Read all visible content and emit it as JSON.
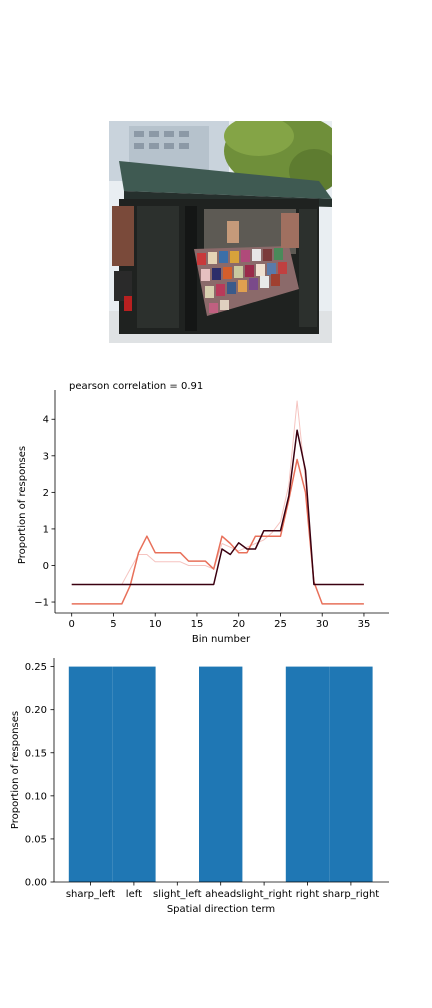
{
  "chart_data": [
    {
      "type": "line",
      "title": "pearson correlation = 0.91",
      "xlabel": "Bin number",
      "ylabel": "Proportion of responses",
      "xlim": [
        -2,
        38
      ],
      "ylim": [
        -1.3,
        4.8
      ],
      "xticks": [
        0,
        5,
        10,
        15,
        20,
        25,
        30,
        35
      ],
      "yticks": [
        -1,
        0,
        1,
        2,
        3,
        4
      ],
      "grid": false,
      "series": [
        {
          "color": "#e8705a",
          "x": [
            0,
            1,
            2,
            3,
            4,
            5,
            6,
            7,
            8,
            9,
            10,
            11,
            12,
            13,
            14,
            15,
            16,
            17,
            18,
            19,
            20,
            21,
            22,
            23,
            24,
            25,
            26,
            27,
            28,
            29,
            30,
            31,
            32,
            33,
            34,
            35
          ],
          "y": [
            -1.05,
            -1.05,
            -1.05,
            -1.05,
            -1.05,
            -1.05,
            -1.05,
            -0.55,
            0.35,
            0.8,
            0.35,
            0.35,
            0.35,
            0.35,
            0.12,
            0.12,
            0.12,
            -0.1,
            0.8,
            0.6,
            0.35,
            0.35,
            0.8,
            0.8,
            0.8,
            0.8,
            1.8,
            2.9,
            2.0,
            -0.45,
            -1.05,
            -1.05,
            -1.05,
            -1.05,
            -1.05,
            -1.05
          ]
        },
        {
          "color": "#3a0010",
          "x": [
            0,
            1,
            2,
            3,
            4,
            5,
            6,
            7,
            8,
            9,
            10,
            11,
            12,
            13,
            14,
            15,
            16,
            17,
            18,
            19,
            20,
            21,
            22,
            23,
            24,
            25,
            26,
            27,
            28,
            29,
            30,
            31,
            32,
            33,
            34,
            35
          ],
          "y": [
            -0.52,
            -0.52,
            -0.52,
            -0.52,
            -0.52,
            -0.52,
            -0.52,
            -0.52,
            -0.52,
            -0.52,
            -0.52,
            -0.52,
            -0.52,
            -0.52,
            -0.52,
            -0.52,
            -0.52,
            -0.52,
            0.45,
            0.3,
            0.62,
            0.45,
            0.45,
            0.95,
            0.95,
            0.95,
            1.9,
            3.7,
            2.6,
            -0.52,
            -0.52,
            -0.52,
            -0.52,
            -0.52,
            -0.52,
            -0.52
          ]
        },
        {
          "color": "#f5c4c0",
          "x": [
            0,
            1,
            2,
            3,
            4,
            5,
            6,
            7,
            8,
            9,
            10,
            11,
            12,
            13,
            14,
            15,
            16,
            17,
            18,
            19,
            20,
            21,
            22,
            23,
            24,
            25,
            26,
            27,
            28,
            29,
            30,
            31,
            32,
            33,
            34,
            35
          ],
          "y": [
            -0.52,
            -0.52,
            -0.52,
            -0.52,
            -0.52,
            -0.52,
            -0.52,
            -0.1,
            0.3,
            0.3,
            0.1,
            0.1,
            0.1,
            0.1,
            0.0,
            0.0,
            0.0,
            -0.1,
            0.6,
            0.5,
            0.4,
            0.5,
            0.6,
            0.7,
            0.9,
            1.2,
            2.2,
            4.5,
            2.3,
            -0.52,
            -0.52,
            -0.52,
            -0.52,
            -0.52,
            -0.52,
            -0.52
          ]
        }
      ]
    },
    {
      "type": "bar",
      "xlabel": "Spatial direction term",
      "ylabel": "Proportion of responses",
      "categories": [
        "sharp_left",
        "left",
        "slight_left",
        "ahead",
        "slight_right",
        "right",
        "sharp_right"
      ],
      "values": [
        0.25,
        0.25,
        0.0,
        0.25,
        0.0,
        0.25,
        0.25
      ],
      "ylim": [
        0,
        0.26
      ],
      "yticks": [
        "0.00",
        "0.05",
        "0.10",
        "0.15",
        "0.20",
        "0.25"
      ],
      "color": "#1f77b4",
      "grid": false
    }
  ]
}
